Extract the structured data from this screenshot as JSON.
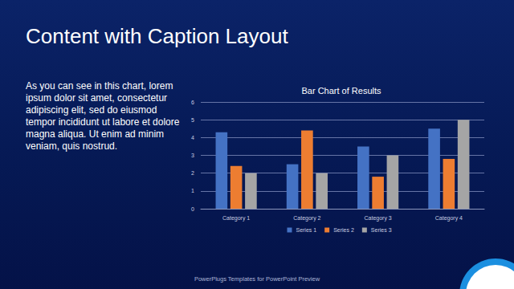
{
  "heading": "Content with Caption Layout",
  "caption": "As you can see in this chart, lorem ipsum dolor sit amet, consectetur adipiscing elit, sed do eiusmod tempor incididunt ut labore et dolore magna aliqua. Ut enim ad minim veniam, quis nostrud.",
  "footer": "PowerPlugs Templates for PowerPoint Preview",
  "chart_data": {
    "type": "bar",
    "title": "Bar Chart of Results",
    "categories": [
      "Category 1",
      "Category 2",
      "Category 3",
      "Category 4"
    ],
    "series": [
      {
        "name": "Series 1",
        "color": "#4472c4",
        "values": [
          4.3,
          2.5,
          3.5,
          4.5
        ]
      },
      {
        "name": "Series 2",
        "color": "#ed7d31",
        "values": [
          2.4,
          4.4,
          1.8,
          2.8
        ]
      },
      {
        "name": "Series 3",
        "color": "#a5a5a5",
        "values": [
          2,
          2,
          3,
          5
        ]
      }
    ],
    "ylim": [
      0,
      6
    ],
    "yticks": [
      0,
      1,
      2,
      3,
      4,
      5,
      6
    ],
    "grid": true,
    "legend": "bottom"
  }
}
